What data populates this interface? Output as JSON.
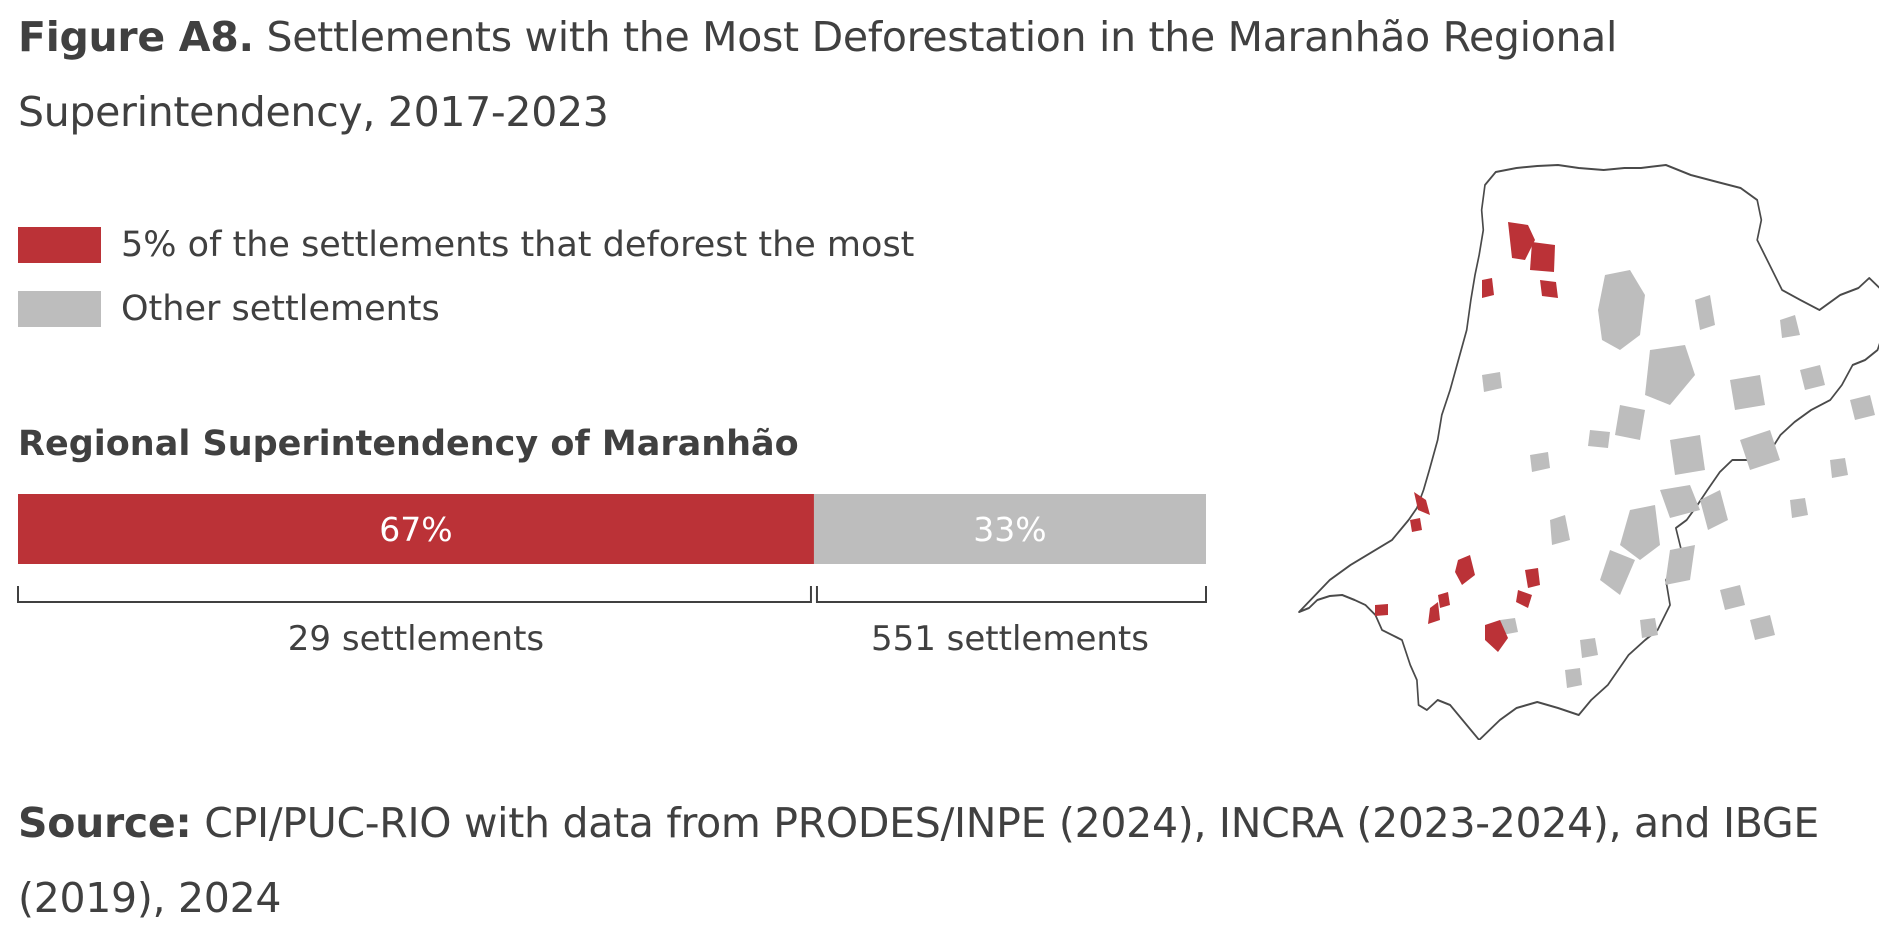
{
  "title": {
    "lead": "Figure A8.",
    "text": "Settlements with the Most Deforestation in the Maranhão Regional Superintendency, 2017-2023"
  },
  "legend": [
    {
      "label": "5% of the settlements that deforest the most",
      "color": "#bb3237"
    },
    {
      "label": "Other settlements",
      "color": "#bdbdbd"
    }
  ],
  "chart_data": {
    "type": "bar",
    "orientation": "horizontal-stacked",
    "title": "Regional Superintendency of Maranhão",
    "categories": [
      "Regional Superintendency of Maranhão"
    ],
    "series": [
      {
        "name": "5% of the settlements that deforest the most",
        "values": [
          67
        ],
        "label": "67%",
        "count_label": "29 settlements",
        "color": "#bb3237"
      },
      {
        "name": "Other settlements",
        "values": [
          33
        ],
        "label": "33%",
        "count_label": "551 settlements",
        "color": "#bdbdbd"
      }
    ],
    "xlim": [
      0,
      100
    ],
    "grid": false,
    "legend_position": "top-left"
  },
  "map": {
    "region": "Maranhão",
    "outline_color": "#4a4a4a",
    "fill_color": "#ffffff",
    "colors": {
      "top": "#bb3237",
      "other": "#bdbdbd"
    }
  },
  "source": {
    "lead": "Source:",
    "text": "CPI/PUC-RIO with data from PRODES/INPE (2024), INCRA (2023-2024), and IBGE (2019), 2024"
  }
}
